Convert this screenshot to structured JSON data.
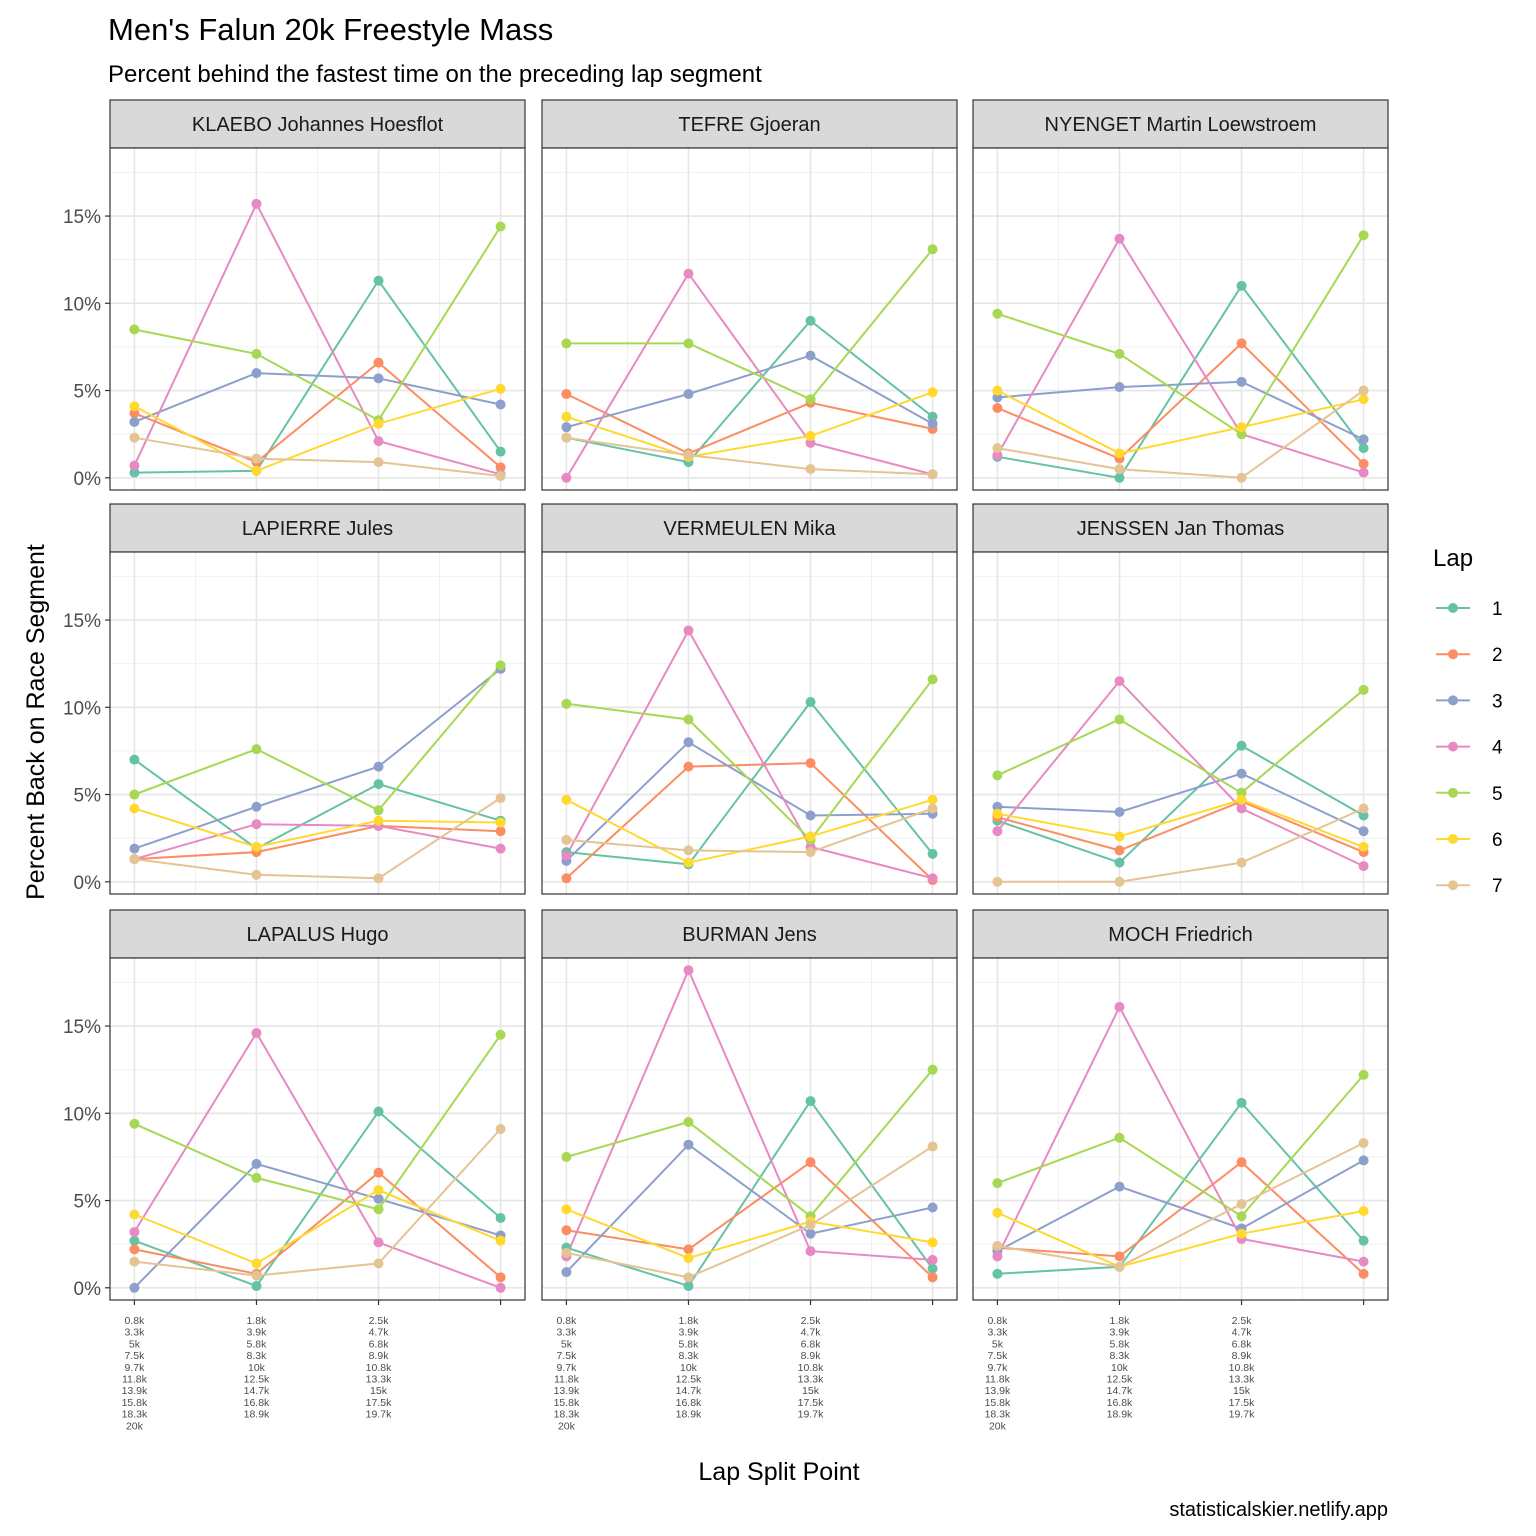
{
  "chart_data": {
    "type": "line",
    "title": "Men's Falun 20k Freestyle Mass",
    "subtitle": "Percent behind the fastest time on the preceding lap segment",
    "xlabel": "Lap Split Point",
    "ylabel": "Percent Back on Race Segment",
    "caption": "statisticalskier.netlify.app",
    "legend_title": "Lap",
    "legend_position": "right",
    "grid": true,
    "y_tick_labels": [
      "0%",
      "5%",
      "10%",
      "15%"
    ],
    "y_ticks": [
      0,
      5,
      10,
      15
    ],
    "ylim": [
      -0.7,
      18.9
    ],
    "xlim": [
      0.8,
      4.2
    ],
    "x_tick_labels": [
      [
        "0.8k",
        "3.3k",
        "5k",
        "7.5k",
        "9.7k",
        "11.8k",
        "13.9k",
        "15.8k",
        "18.3k",
        "20k"
      ],
      [
        "1.8k",
        "3.9k",
        "5.8k",
        "8.3k",
        "10k",
        "12.5k",
        "14.7k",
        "16.8k",
        "18.9k"
      ],
      [
        "2.5k",
        "4.7k",
        "6.8k",
        "8.9k",
        "10.8k",
        "13.3k",
        "15k",
        "17.5k",
        "19.7k"
      ]
    ],
    "laps": [
      "1",
      "2",
      "3",
      "4",
      "5",
      "6",
      "7"
    ],
    "colors": [
      "#66C2A5",
      "#FC8D62",
      "#8DA0CB",
      "#E78AC3",
      "#A6D854",
      "#FFD92F",
      "#E5C494"
    ],
    "panels": [
      {
        "name": "KLAEBO Johannes Hoesflot",
        "series": [
          [
            0.3,
            0.4,
            11.3,
            1.5
          ],
          [
            3.7,
            0.9,
            6.6,
            0.6
          ],
          [
            3.2,
            6.0,
            5.7,
            4.2
          ],
          [
            0.7,
            15.7,
            2.1,
            0.2
          ],
          [
            8.5,
            7.1,
            3.3,
            14.4
          ],
          [
            4.1,
            0.4,
            3.1,
            5.1
          ],
          [
            2.3,
            1.1,
            0.9,
            0.1
          ]
        ]
      },
      {
        "name": "TEFRE Gjoeran",
        "series": [
          [
            2.3,
            0.9,
            9.0,
            3.5
          ],
          [
            4.8,
            1.4,
            4.3,
            2.8
          ],
          [
            2.9,
            4.8,
            7.0,
            3.1
          ],
          [
            0.0,
            11.7,
            2.0,
            0.2
          ],
          [
            7.7,
            7.7,
            4.5,
            13.1
          ],
          [
            3.5,
            1.2,
            2.4,
            4.9
          ],
          [
            2.3,
            1.3,
            0.5,
            0.2
          ]
        ]
      },
      {
        "name": "NYENGET Martin Loewstroem",
        "series": [
          [
            1.2,
            0.0,
            11.0,
            1.7
          ],
          [
            4.0,
            1.1,
            7.7,
            0.8
          ],
          [
            4.6,
            5.2,
            5.5,
            2.2
          ],
          [
            1.3,
            13.7,
            2.5,
            0.3
          ],
          [
            9.4,
            7.1,
            2.5,
            13.9
          ],
          [
            5.0,
            1.4,
            2.9,
            4.5
          ],
          [
            1.7,
            0.5,
            0.0,
            5.0
          ]
        ]
      },
      {
        "name": "LAPIERRE Jules",
        "series": [
          [
            7.0,
            1.9,
            5.6,
            3.5
          ],
          [
            1.3,
            1.7,
            3.2,
            2.9
          ],
          [
            1.9,
            4.3,
            6.6,
            12.2
          ],
          [
            1.3,
            3.3,
            3.2,
            1.9
          ],
          [
            5.0,
            7.6,
            4.1,
            12.4
          ],
          [
            4.2,
            2.0,
            3.5,
            3.4
          ],
          [
            1.3,
            0.4,
            0.2,
            4.8
          ]
        ]
      },
      {
        "name": "VERMEULEN Mika",
        "series": [
          [
            1.7,
            1.0,
            10.3,
            1.6
          ],
          [
            0.2,
            6.6,
            6.8,
            0.1
          ],
          [
            1.2,
            8.0,
            3.8,
            3.9
          ],
          [
            1.5,
            14.4,
            2.0,
            0.2
          ],
          [
            10.2,
            9.3,
            2.4,
            11.6
          ],
          [
            4.7,
            1.1,
            2.6,
            4.7
          ],
          [
            2.4,
            1.8,
            1.7,
            4.2
          ]
        ]
      },
      {
        "name": "JENSSEN Jan Thomas",
        "series": [
          [
            3.5,
            1.1,
            7.8,
            3.8
          ],
          [
            3.7,
            1.8,
            4.6,
            1.7
          ],
          [
            4.3,
            4.0,
            6.2,
            2.9
          ],
          [
            2.9,
            11.5,
            4.2,
            0.9
          ],
          [
            6.1,
            9.3,
            5.1,
            11.0
          ],
          [
            3.9,
            2.6,
            4.7,
            2.0
          ],
          [
            0.0,
            0.0,
            1.1,
            4.2
          ]
        ]
      },
      {
        "name": "LAPALUS Hugo",
        "series": [
          [
            2.7,
            0.1,
            10.1,
            4.0
          ],
          [
            2.2,
            0.8,
            6.6,
            0.6
          ],
          [
            0.0,
            7.1,
            5.1,
            3.0
          ],
          [
            3.2,
            14.6,
            2.6,
            0.0
          ],
          [
            9.4,
            6.3,
            4.5,
            14.5
          ],
          [
            4.2,
            1.4,
            5.6,
            2.7
          ],
          [
            1.5,
            0.7,
            1.4,
            9.1
          ]
        ]
      },
      {
        "name": "BURMAN Jens",
        "series": [
          [
            2.3,
            0.1,
            10.7,
            1.1
          ],
          [
            3.3,
            2.2,
            7.2,
            0.6
          ],
          [
            0.9,
            8.2,
            3.1,
            4.6
          ],
          [
            1.8,
            18.2,
            2.1,
            1.6
          ],
          [
            7.5,
            9.5,
            4.1,
            12.5
          ],
          [
            4.5,
            1.7,
            3.8,
            2.6
          ],
          [
            2.0,
            0.6,
            3.6,
            8.1
          ]
        ]
      },
      {
        "name": "MOCH Friedrich",
        "series": [
          [
            0.8,
            1.2,
            10.6,
            2.7
          ],
          [
            2.3,
            1.8,
            7.2,
            0.8
          ],
          [
            2.1,
            5.8,
            3.4,
            7.3
          ],
          [
            1.8,
            16.1,
            2.8,
            1.5
          ],
          [
            6.0,
            8.6,
            4.1,
            12.2
          ],
          [
            4.3,
            1.2,
            3.1,
            4.4
          ],
          [
            2.4,
            1.2,
            4.8,
            8.3
          ]
        ]
      }
    ]
  }
}
